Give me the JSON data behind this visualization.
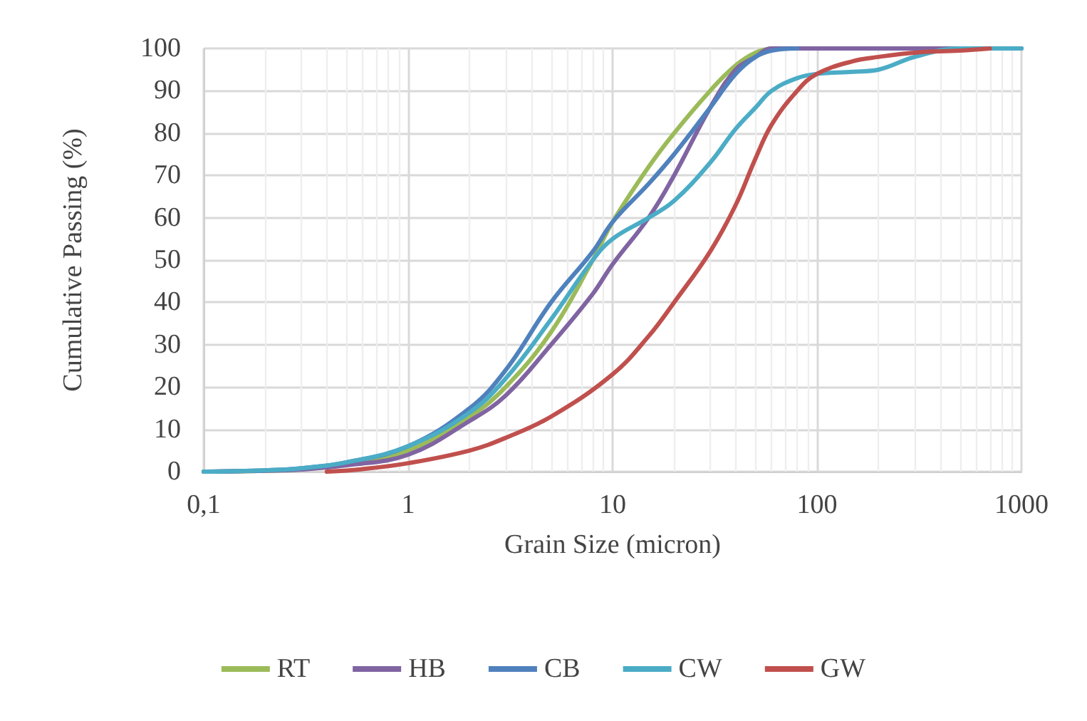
{
  "chart_data": {
    "type": "line",
    "xlabel": "Grain Size (micron)",
    "ylabel": "Cumulative Passing (%)",
    "xlim": [
      0.1,
      1000
    ],
    "xticks": [
      {
        "value": 0.1,
        "label": "0,1"
      },
      1,
      10,
      100,
      1000
    ],
    "ylim": [
      0,
      100
    ],
    "yticks": [
      0,
      10,
      20,
      30,
      40,
      50,
      60,
      70,
      80,
      90,
      100
    ],
    "log": "x",
    "grid": true,
    "legend": "bottom",
    "marker": "none",
    "line_style": "solid",
    "series": [
      {
        "name": "RT",
        "color": "#9bbb59",
        "x": [
          0.1,
          0.2,
          0.3,
          0.5,
          1,
          2,
          3,
          5,
          8,
          10,
          15,
          20,
          30,
          40,
          50,
          60
        ],
        "values": [
          0,
          0.2,
          0.6,
          1.8,
          5,
          13,
          20,
          33,
          50,
          59,
          72,
          80,
          90,
          96,
          99,
          100
        ]
      },
      {
        "name": "HB",
        "color": "#8064a2",
        "x": [
          0.1,
          0.2,
          0.3,
          0.5,
          1,
          2,
          3,
          5,
          8,
          10,
          15,
          20,
          30,
          40,
          50,
          60,
          1000
        ],
        "values": [
          0,
          0.2,
          0.5,
          1.5,
          4,
          12,
          18,
          30,
          42,
          49,
          60,
          70,
          86,
          95,
          98,
          100,
          100
        ]
      },
      {
        "name": "CB",
        "color": "#4f81bd",
        "x": [
          0.1,
          0.2,
          0.3,
          0.5,
          1,
          2,
          3,
          5,
          8,
          10,
          15,
          20,
          30,
          40,
          50,
          60,
          80
        ],
        "values": [
          0,
          0.3,
          0.8,
          2.2,
          6,
          15,
          24,
          40,
          52,
          59,
          68,
          75,
          86,
          94,
          98,
          99.5,
          100
        ]
      },
      {
        "name": "CW",
        "color": "#4bacc6",
        "x": [
          0.1,
          0.2,
          0.3,
          0.5,
          1,
          2,
          3,
          5,
          8,
          10,
          15,
          20,
          30,
          40,
          50,
          60,
          80,
          100,
          150,
          200,
          300,
          500,
          1000
        ],
        "values": [
          0,
          0.3,
          0.8,
          2.2,
          6,
          14,
          22,
          36,
          50,
          55,
          60,
          64,
          73,
          81,
          86,
          90,
          93,
          94,
          94.5,
          95,
          98,
          100,
          100
        ]
      },
      {
        "name": "GW",
        "color": "#c0504d",
        "x": [
          0.4,
          0.6,
          1,
          2,
          3,
          5,
          10,
          15,
          20,
          30,
          40,
          50,
          60,
          80,
          100,
          150,
          200,
          300,
          500,
          700
        ],
        "values": [
          0,
          0.6,
          2,
          5,
          8,
          13,
          23,
          32,
          40,
          52,
          63,
          74,
          82,
          90,
          94,
          97,
          98,
          99,
          99.5,
          100
        ]
      }
    ]
  }
}
